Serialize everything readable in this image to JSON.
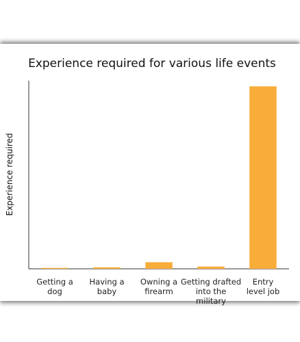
{
  "chart_data": {
    "type": "bar",
    "title": "Experience required for various life events",
    "y_label": "Experience required",
    "categories": [
      "Getting a dog",
      "Having a baby",
      "Owning a firearm",
      "Getting drafted into the military",
      "Entry level job"
    ],
    "values": [
      0.5,
      0.8,
      3.5,
      1.2,
      97
    ],
    "color": "#f8ad3a",
    "ylim": [
      0,
      100
    ],
    "grid": false
  }
}
